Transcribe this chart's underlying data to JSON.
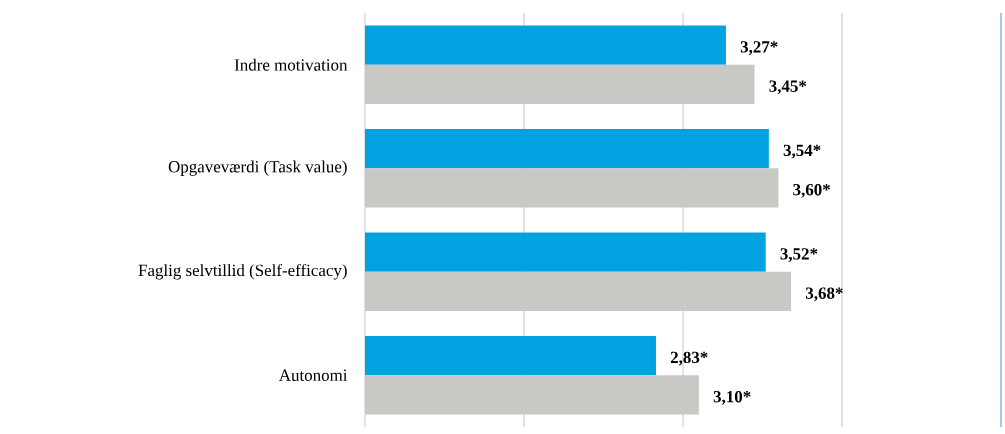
{
  "chart_data": {
    "type": "bar",
    "orientation": "horizontal",
    "categories": [
      "Indre motivation",
      "Opgaveværdi (Task value)",
      "Faglig selvtillid (Self-efficacy)",
      "Autonomi"
    ],
    "series": [
      {
        "color": "#00a3e0",
        "values": [
          3.27,
          3.54,
          3.52,
          2.83
        ],
        "value_labels": [
          "3,27*",
          "3,54*",
          "3,52*",
          "2,83*"
        ]
      },
      {
        "color": "#c8c8c4",
        "values": [
          3.45,
          3.6,
          3.68,
          3.1
        ],
        "value_labels": [
          "3,45*",
          "3,60*",
          "3,68*",
          "3,10*"
        ]
      }
    ],
    "xlim": [
      1,
      5
    ],
    "xticks": [
      {
        "value": 1,
        "label": null
      },
      {
        "value": 2,
        "label": null
      },
      {
        "value": 3,
        "label": null
      },
      {
        "value": 4,
        "label": null
      }
    ],
    "grid": "x",
    "tick_labels": "y"
  }
}
